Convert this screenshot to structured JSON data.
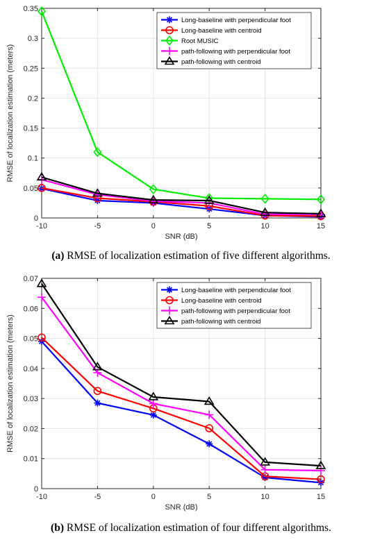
{
  "captions": [
    {
      "tag": "(a)",
      "text": "RMSE of localization estimation of five different algorithms."
    },
    {
      "tag": "(b)",
      "text": "RMSE of localization estimation of four different algorithms."
    }
  ],
  "chart_data": [
    {
      "type": "line",
      "xlabel": "SNR (dB)",
      "ylabel": "RMSE of localization estimation (meters)",
      "x": [
        -10,
        -5,
        0,
        5,
        10,
        15
      ],
      "xlim": [
        -10,
        15
      ],
      "ylim": [
        0,
        0.35
      ],
      "xticks": [
        "-10",
        "-5",
        "0",
        "5",
        "10",
        "15"
      ],
      "yticks": [
        "0",
        "0.05",
        "0.1",
        "0.15",
        "0.2",
        "0.25",
        "0.3",
        "0.35"
      ],
      "grid": true,
      "legend_position": "top-right",
      "series": [
        {
          "name": "Long-baseline with perpendicular foot",
          "color": "#0000ff",
          "marker": "asterisk",
          "values": [
            0.049,
            0.029,
            0.025,
            0.015,
            0.004,
            0.002
          ]
        },
        {
          "name": "Long-baseline with centroid",
          "color": "#ff0000",
          "marker": "circle",
          "values": [
            0.05,
            0.033,
            0.027,
            0.02,
            0.004,
            0.003
          ]
        },
        {
          "name": "Root MUSIC",
          "color": "#00ee00",
          "marker": "diamond",
          "values": [
            0.345,
            0.11,
            0.048,
            0.033,
            0.032,
            0.031
          ]
        },
        {
          "name": "path-following with perpendicular foot",
          "color": "#ff00ff",
          "marker": "plus",
          "values": [
            0.064,
            0.039,
            0.028,
            0.025,
            0.006,
            0.006
          ]
        },
        {
          "name": "path-following with centroid",
          "color": "#000000",
          "marker": "triangle",
          "values": [
            0.068,
            0.041,
            0.03,
            0.029,
            0.009,
            0.007
          ]
        }
      ]
    },
    {
      "type": "line",
      "xlabel": "SNR (dB)",
      "ylabel": "RMSE of localization estimation (meters)",
      "x": [
        -10,
        -5,
        0,
        5,
        10,
        15
      ],
      "xlim": [
        -10,
        15
      ],
      "ylim": [
        0,
        0.07
      ],
      "xticks": [
        "-10",
        "-5",
        "0",
        "5",
        "10",
        "15"
      ],
      "yticks": [
        "0",
        "0.01",
        "0.02",
        "0.03",
        "0.04",
        "0.05",
        "0.06",
        "0.07"
      ],
      "grid": true,
      "legend_position": "top-right",
      "series": [
        {
          "name": "Long-baseline with perpendicular foot",
          "color": "#0000ff",
          "marker": "asterisk",
          "values": [
            0.049,
            0.0285,
            0.0245,
            0.0149,
            0.0037,
            0.002
          ]
        },
        {
          "name": "Long-baseline with centroid",
          "color": "#ff0000",
          "marker": "circle",
          "values": [
            0.0503,
            0.0325,
            0.0267,
            0.0201,
            0.0041,
            0.0031
          ]
        },
        {
          "name": "path-following with perpendicular foot",
          "color": "#ff00ff",
          "marker": "plus",
          "values": [
            0.0637,
            0.0386,
            0.0283,
            0.0246,
            0.0063,
            0.006
          ]
        },
        {
          "name": "path-following with centroid",
          "color": "#000000",
          "marker": "triangle",
          "values": [
            0.0682,
            0.0405,
            0.0305,
            0.029,
            0.0088,
            0.0076
          ]
        }
      ]
    }
  ]
}
